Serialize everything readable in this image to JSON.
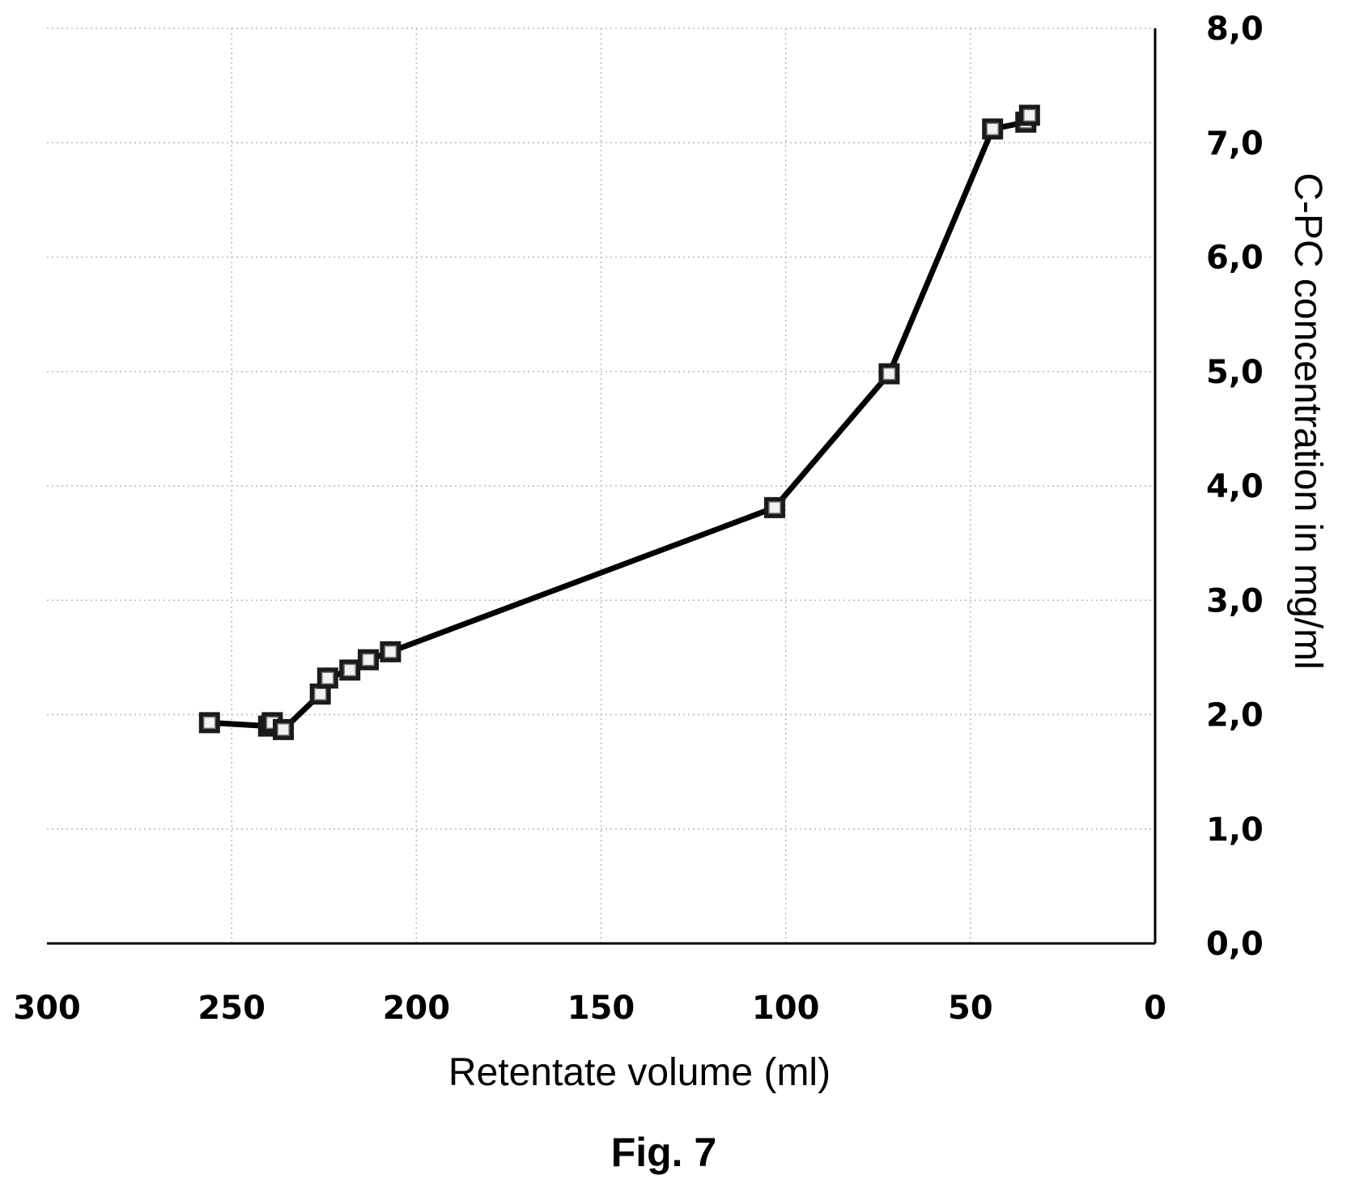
{
  "chart_data": {
    "type": "scatter",
    "xlabel": "Retentate volume (ml)",
    "ylabel": "C-PC concentration in mg/ml",
    "xlim": [
      300,
      0
    ],
    "ylim": [
      0,
      8
    ],
    "x_reversed": true,
    "y_axis_position": "right",
    "grid": true,
    "lines_connecting_points": true,
    "x_ticks": [
      "300",
      "250",
      "200",
      "150",
      "100",
      "50",
      "0"
    ],
    "y_ticks": [
      "0,0",
      "1,0",
      "2,0",
      "3,0",
      "4,0",
      "5,0",
      "6,0",
      "7,0",
      "8,0"
    ],
    "series": [
      {
        "x": [
          256,
          240,
          239,
          236,
          226,
          224,
          218,
          213,
          207,
          103,
          72,
          44,
          35,
          34
        ],
        "y": [
          1.93,
          1.9,
          1.93,
          1.87,
          2.18,
          2.32,
          2.39,
          2.48,
          2.55,
          3.81,
          4.98,
          7.12,
          7.18,
          7.24
        ]
      }
    ],
    "colors": {
      "line": "#000000",
      "marker_border": "#1a1a1a",
      "marker_fill": "#f2f2f2"
    }
  },
  "caption": "Fig. 7"
}
